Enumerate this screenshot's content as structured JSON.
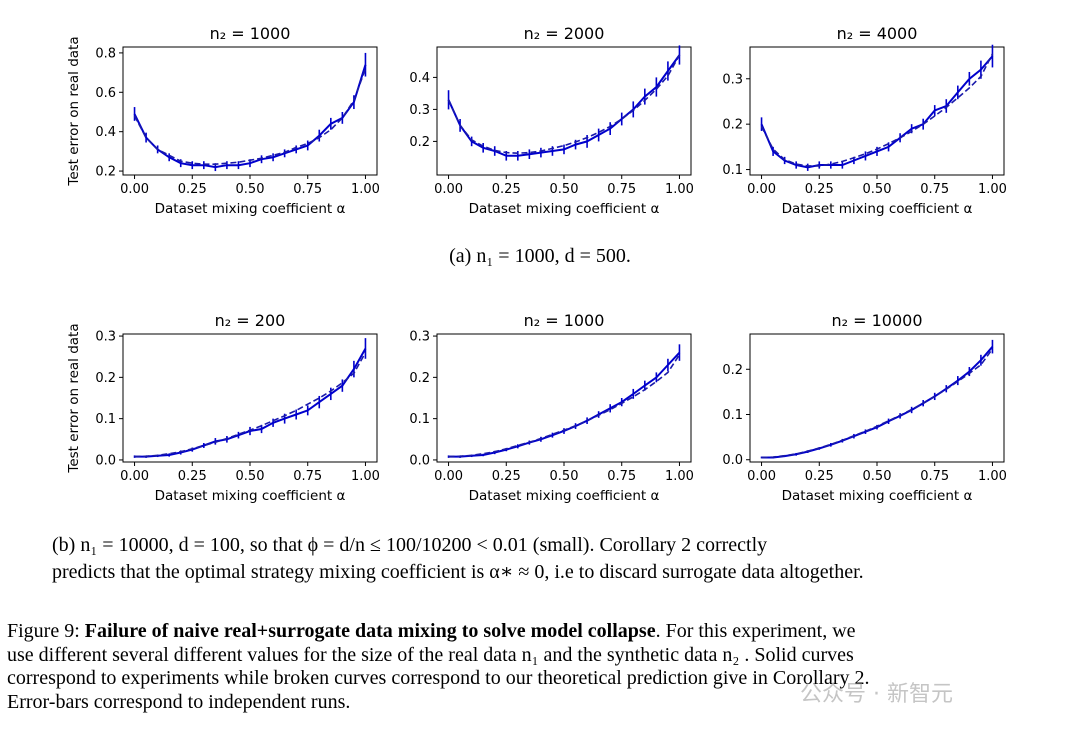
{
  "colors": {
    "solid": "#0000cc",
    "dashed": "#1a1aaa",
    "axis": "#000000"
  },
  "xlabel": "Dataset mixing coefficient α",
  "ylabel": "Test error on real data",
  "captions": {
    "a": "(a) n₁ = 1000, d = 500.",
    "b_line1": "(b) n₁ = 10000, d = 100, so that ϕ = d/n ≤ 100/10200 < 0.01 (small). Corollary 2 correctly",
    "b_line2": "predicts that the optimal strategy mixing coefficient is α∗ ≈ 0, i.e to discard surrogate data altogether.",
    "fig_prefix": "Figure 9: ",
    "fig_bold": "Failure of naive real+surrogate data mixing to solve model collapse",
    "fig_rest1": ". For this experiment, we",
    "fig_line2": "use different several different values for the size of the real data n₁ and the synthetic data n₂ . Solid curves",
    "fig_line3": "correspond to experiments while broken curves correspond to our theoretical prediction give in Corollary 2.",
    "fig_line4": "Error-bars correspond to independent runs."
  },
  "watermark": "公众号 · 新智元",
  "chart_data": [
    {
      "type": "line",
      "title": "n₂ = 1000",
      "xlabel": "Dataset mixing coefficient α",
      "ylabel": "Test error on real data",
      "xlim": [
        -0.05,
        1.05
      ],
      "ylim": [
        0.18,
        0.83
      ],
      "xticks": [
        0.0,
        0.25,
        0.5,
        0.75,
        1.0
      ],
      "xtick_labels": [
        "0.00",
        "0.25",
        "0.50",
        "0.75",
        "1.00"
      ],
      "yticks": [
        0.2,
        0.4,
        0.6,
        0.8
      ],
      "ytick_labels": [
        "0.2",
        "0.4",
        "0.6",
        "0.8"
      ],
      "x": [
        0,
        0.05,
        0.1,
        0.15,
        0.2,
        0.25,
        0.3,
        0.35,
        0.4,
        0.45,
        0.5,
        0.55,
        0.6,
        0.65,
        0.7,
        0.75,
        0.8,
        0.85,
        0.9,
        0.95,
        1.0
      ],
      "series": [
        {
          "name": "experiment",
          "style": "solid",
          "values": [
            0.49,
            0.37,
            0.31,
            0.27,
            0.24,
            0.23,
            0.23,
            0.22,
            0.23,
            0.23,
            0.24,
            0.26,
            0.27,
            0.29,
            0.31,
            0.33,
            0.38,
            0.44,
            0.47,
            0.55,
            0.74
          ],
          "err": [
            0.035,
            0.025,
            0.02,
            0.02,
            0.02,
            0.02,
            0.02,
            0.02,
            0.02,
            0.02,
            0.02,
            0.02,
            0.02,
            0.02,
            0.02,
            0.025,
            0.03,
            0.03,
            0.03,
            0.035,
            0.06
          ]
        },
        {
          "name": "theory",
          "style": "dashed",
          "values": [
            0.48,
            0.37,
            0.31,
            0.28,
            0.25,
            0.24,
            0.235,
            0.235,
            0.24,
            0.245,
            0.255,
            0.265,
            0.28,
            0.295,
            0.32,
            0.34,
            0.37,
            0.41,
            0.47,
            0.56,
            0.72
          ]
        }
      ]
    },
    {
      "type": "line",
      "title": "n₂ = 2000",
      "xlabel": "Dataset mixing coefficient α",
      "ylabel": "",
      "xlim": [
        -0.05,
        1.05
      ],
      "ylim": [
        0.095,
        0.495
      ],
      "xticks": [
        0.0,
        0.25,
        0.5,
        0.75,
        1.0
      ],
      "xtick_labels": [
        "0.00",
        "0.25",
        "0.50",
        "0.75",
        "1.00"
      ],
      "yticks": [
        0.2,
        0.3,
        0.4
      ],
      "ytick_labels": [
        "0.2",
        "0.3",
        "0.4"
      ],
      "x": [
        0,
        0.05,
        0.1,
        0.15,
        0.2,
        0.25,
        0.3,
        0.35,
        0.4,
        0.45,
        0.5,
        0.55,
        0.6,
        0.65,
        0.7,
        0.75,
        0.8,
        0.85,
        0.9,
        0.95,
        1.0
      ],
      "series": [
        {
          "name": "experiment",
          "style": "solid",
          "values": [
            0.33,
            0.25,
            0.2,
            0.18,
            0.17,
            0.155,
            0.155,
            0.16,
            0.165,
            0.17,
            0.175,
            0.19,
            0.2,
            0.22,
            0.24,
            0.27,
            0.3,
            0.34,
            0.37,
            0.42,
            0.47
          ],
          "err": [
            0.03,
            0.02,
            0.015,
            0.015,
            0.015,
            0.015,
            0.015,
            0.015,
            0.015,
            0.015,
            0.015,
            0.015,
            0.02,
            0.02,
            0.02,
            0.02,
            0.025,
            0.025,
            0.03,
            0.03,
            0.03
          ]
        },
        {
          "name": "theory",
          "style": "dashed",
          "values": [
            0.33,
            0.25,
            0.205,
            0.185,
            0.172,
            0.165,
            0.163,
            0.165,
            0.17,
            0.178,
            0.187,
            0.198,
            0.212,
            0.228,
            0.247,
            0.27,
            0.297,
            0.328,
            0.363,
            0.405,
            0.47
          ]
        }
      ]
    },
    {
      "type": "line",
      "title": "n₂ = 4000",
      "xlabel": "Dataset mixing coefficient α",
      "ylabel": "",
      "xlim": [
        -0.05,
        1.05
      ],
      "ylim": [
        0.088,
        0.37
      ],
      "xticks": [
        0.0,
        0.25,
        0.5,
        0.75,
        1.0
      ],
      "xtick_labels": [
        "0.00",
        "0.25",
        "0.50",
        "0.75",
        "1.00"
      ],
      "yticks": [
        0.1,
        0.2,
        0.3
      ],
      "ytick_labels": [
        "0.1",
        "0.2",
        "0.3"
      ],
      "x": [
        0,
        0.05,
        0.1,
        0.15,
        0.2,
        0.25,
        0.3,
        0.35,
        0.4,
        0.45,
        0.5,
        0.55,
        0.6,
        0.65,
        0.7,
        0.75,
        0.8,
        0.85,
        0.9,
        0.95,
        1.0
      ],
      "series": [
        {
          "name": "experiment",
          "style": "solid",
          "values": [
            0.2,
            0.14,
            0.12,
            0.11,
            0.105,
            0.11,
            0.11,
            0.11,
            0.12,
            0.13,
            0.14,
            0.15,
            0.17,
            0.19,
            0.2,
            0.23,
            0.24,
            0.27,
            0.3,
            0.32,
            0.35
          ],
          "err": [
            0.015,
            0.01,
            0.008,
            0.008,
            0.008,
            0.008,
            0.008,
            0.008,
            0.008,
            0.01,
            0.01,
            0.01,
            0.01,
            0.01,
            0.012,
            0.012,
            0.015,
            0.015,
            0.015,
            0.02,
            0.025
          ]
        },
        {
          "name": "theory",
          "style": "dashed",
          "values": [
            0.195,
            0.145,
            0.122,
            0.112,
            0.108,
            0.108,
            0.112,
            0.118,
            0.126,
            0.135,
            0.145,
            0.157,
            0.17,
            0.184,
            0.2,
            0.218,
            0.237,
            0.258,
            0.28,
            0.305,
            0.355
          ]
        }
      ]
    },
    {
      "type": "line",
      "title": "n₂ = 200",
      "xlabel": "Dataset mixing coefficient α",
      "ylabel": "Test error on real data",
      "xlim": [
        -0.05,
        1.05
      ],
      "ylim": [
        -0.005,
        0.305
      ],
      "xticks": [
        0.0,
        0.25,
        0.5,
        0.75,
        1.0
      ],
      "xtick_labels": [
        "0.00",
        "0.25",
        "0.50",
        "0.75",
        "1.00"
      ],
      "yticks": [
        0.0,
        0.1,
        0.2,
        0.3
      ],
      "ytick_labels": [
        "0.0",
        "0.1",
        "0.2",
        "0.3"
      ],
      "x": [
        0,
        0.05,
        0.1,
        0.15,
        0.2,
        0.25,
        0.3,
        0.35,
        0.4,
        0.45,
        0.5,
        0.55,
        0.6,
        0.65,
        0.7,
        0.75,
        0.8,
        0.85,
        0.9,
        0.95,
        1.0
      ],
      "series": [
        {
          "name": "experiment",
          "style": "solid",
          "values": [
            0.008,
            0.008,
            0.01,
            0.012,
            0.018,
            0.025,
            0.035,
            0.045,
            0.05,
            0.06,
            0.07,
            0.075,
            0.09,
            0.1,
            0.11,
            0.12,
            0.14,
            0.16,
            0.18,
            0.22,
            0.27
          ],
          "err": [
            0.003,
            0.003,
            0.003,
            0.004,
            0.005,
            0.005,
            0.006,
            0.008,
            0.008,
            0.008,
            0.01,
            0.01,
            0.01,
            0.012,
            0.012,
            0.012,
            0.015,
            0.015,
            0.015,
            0.02,
            0.025
          ]
        },
        {
          "name": "theory",
          "style": "dashed",
          "values": [
            0.008,
            0.009,
            0.011,
            0.015,
            0.02,
            0.027,
            0.035,
            0.043,
            0.052,
            0.062,
            0.072,
            0.083,
            0.095,
            0.107,
            0.12,
            0.135,
            0.15,
            0.167,
            0.187,
            0.21,
            0.26
          ]
        }
      ]
    },
    {
      "type": "line",
      "title": "n₂ = 1000",
      "xlabel": "Dataset mixing coefficient α",
      "ylabel": "",
      "xlim": [
        -0.05,
        1.05
      ],
      "ylim": [
        -0.005,
        0.305
      ],
      "xticks": [
        0.0,
        0.25,
        0.5,
        0.75,
        1.0
      ],
      "xtick_labels": [
        "0.00",
        "0.25",
        "0.50",
        "0.75",
        "1.00"
      ],
      "yticks": [
        0.0,
        0.1,
        0.2,
        0.3
      ],
      "ytick_labels": [
        "0.0",
        "0.1",
        "0.2",
        "0.3"
      ],
      "x": [
        0,
        0.05,
        0.1,
        0.15,
        0.2,
        0.25,
        0.3,
        0.35,
        0.4,
        0.45,
        0.5,
        0.55,
        0.6,
        0.65,
        0.7,
        0.75,
        0.8,
        0.85,
        0.9,
        0.95,
        1.0
      ],
      "series": [
        {
          "name": "experiment",
          "style": "solid",
          "values": [
            0.008,
            0.008,
            0.01,
            0.012,
            0.018,
            0.025,
            0.033,
            0.042,
            0.05,
            0.06,
            0.07,
            0.082,
            0.095,
            0.11,
            0.125,
            0.14,
            0.16,
            0.18,
            0.2,
            0.23,
            0.26
          ],
          "err": [
            0.003,
            0.003,
            0.003,
            0.003,
            0.004,
            0.004,
            0.005,
            0.005,
            0.006,
            0.006,
            0.007,
            0.007,
            0.008,
            0.008,
            0.01,
            0.01,
            0.012,
            0.012,
            0.012,
            0.015,
            0.02
          ]
        },
        {
          "name": "theory",
          "style": "dashed",
          "values": [
            0.008,
            0.009,
            0.011,
            0.015,
            0.02,
            0.027,
            0.035,
            0.043,
            0.052,
            0.062,
            0.072,
            0.083,
            0.095,
            0.108,
            0.122,
            0.137,
            0.153,
            0.17,
            0.19,
            0.212,
            0.255
          ]
        }
      ]
    },
    {
      "type": "line",
      "title": "n₂ = 10000",
      "xlabel": "Dataset mixing coefficient α",
      "ylabel": "",
      "xlim": [
        -0.05,
        1.05
      ],
      "ylim": [
        -0.005,
        0.278
      ],
      "xticks": [
        0.0,
        0.25,
        0.5,
        0.75,
        1.0
      ],
      "xtick_labels": [
        "0.00",
        "0.25",
        "0.50",
        "0.75",
        "1.00"
      ],
      "yticks": [
        0.0,
        0.1,
        0.2
      ],
      "ytick_labels": [
        "0.0",
        "0.1",
        "0.2"
      ],
      "x": [
        0,
        0.05,
        0.1,
        0.15,
        0.2,
        0.25,
        0.3,
        0.35,
        0.4,
        0.45,
        0.5,
        0.55,
        0.6,
        0.65,
        0.7,
        0.75,
        0.8,
        0.85,
        0.9,
        0.95,
        1.0
      ],
      "series": [
        {
          "name": "experiment",
          "style": "solid",
          "values": [
            0.005,
            0.005,
            0.008,
            0.012,
            0.018,
            0.025,
            0.033,
            0.042,
            0.052,
            0.062,
            0.072,
            0.085,
            0.097,
            0.11,
            0.125,
            0.14,
            0.157,
            0.175,
            0.195,
            0.22,
            0.25
          ],
          "err": [
            0.002,
            0.002,
            0.002,
            0.003,
            0.003,
            0.003,
            0.004,
            0.004,
            0.005,
            0.005,
            0.005,
            0.006,
            0.006,
            0.007,
            0.007,
            0.008,
            0.008,
            0.01,
            0.01,
            0.012,
            0.015
          ]
        },
        {
          "name": "theory",
          "style": "dashed",
          "values": [
            0.005,
            0.006,
            0.009,
            0.013,
            0.019,
            0.026,
            0.034,
            0.043,
            0.053,
            0.063,
            0.074,
            0.086,
            0.098,
            0.111,
            0.125,
            0.14,
            0.156,
            0.173,
            0.191,
            0.21,
            0.245
          ]
        }
      ]
    }
  ]
}
